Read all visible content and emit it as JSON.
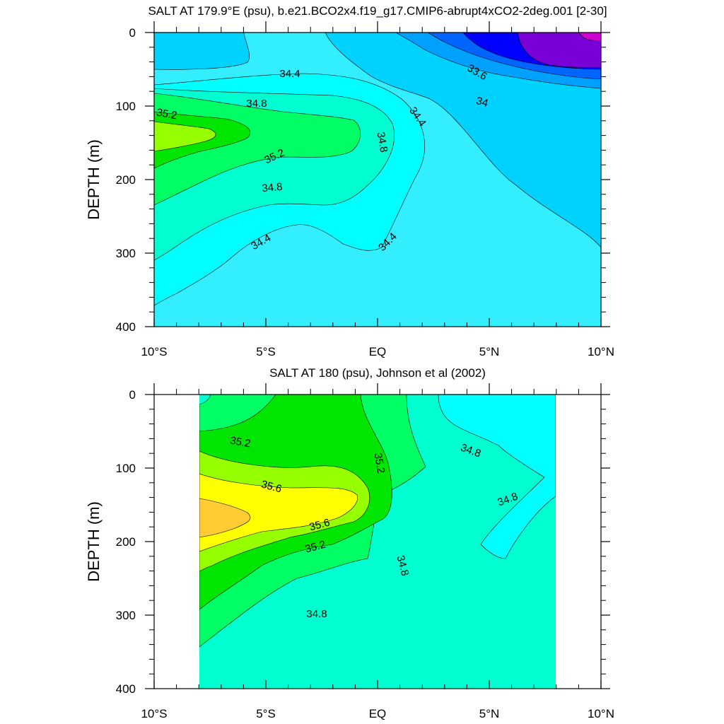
{
  "chart_data": [
    {
      "type": "contour",
      "title": "SALT AT 179.9°E (psu), b.e21.BCO2x4.f19_g17.CMIP6-abrupt4xCO2-2deg.001 [2-30]",
      "xlabel": "",
      "ylabel": "DEPTH (m)",
      "xlim": [
        -10,
        10
      ],
      "ylim": [
        400,
        0
      ],
      "y_reversed": true,
      "x_ticks": [
        -10,
        -5,
        0,
        5,
        10
      ],
      "x_tick_labels": [
        "10°S",
        "5°S",
        "EQ",
        "5°N",
        "10°N"
      ],
      "y_ticks": [
        0,
        100,
        200,
        300,
        400
      ],
      "y_tick_labels": [
        "0",
        "100",
        "200",
        "300",
        "400"
      ],
      "contour_interval": 0.2,
      "contour_labels": [
        {
          "text": "34.4",
          "lat": -4.2,
          "depth": 55
        },
        {
          "text": "34.8",
          "lat": -5.4,
          "depth": 95
        },
        {
          "text": "35.2",
          "lat": -9.6,
          "depth": 108
        },
        {
          "text": "35.2",
          "lat": -4.7,
          "depth": 165
        },
        {
          "text": "34.8",
          "lat": -0.2,
          "depth": 155
        },
        {
          "text": "34.8",
          "lat": -4.8,
          "depth": 210
        },
        {
          "text": "34.4",
          "lat": -5.3,
          "depth": 283
        },
        {
          "text": "34.4",
          "lat": 0.4,
          "depth": 283
        },
        {
          "text": "34.4",
          "lat": 1.8,
          "depth": 115
        },
        {
          "text": "33.6",
          "lat": 4.5,
          "depth": 55
        },
        {
          "text": "34",
          "lat": 4.6,
          "depth": 92
        }
      ],
      "fill_colors": {
        "low_33_0": "#7a00d8",
        "v33_2": "#0000ff",
        "v33_4": "#0064ff",
        "v33_6": "#00a0ff",
        "v34_0": "#00d2ff",
        "v34_4": "#33eeff",
        "v34_6": "#00ffff",
        "v34_8": "#00ffd0",
        "v35_0": "#00ff64",
        "v35_2": "#00e600",
        "v35_4": "#96ff00",
        "max": "#d000d0"
      }
    },
    {
      "type": "contour",
      "title": "SALT AT 180 (psu), Johnson et al (2002)",
      "xlabel": "",
      "ylabel": "DEPTH (m)",
      "xlim": [
        -10,
        10
      ],
      "ylim": [
        400,
        0
      ],
      "y_reversed": true,
      "data_x_range": [
        -8,
        8
      ],
      "x_ticks": [
        -10,
        -5,
        0,
        5,
        10
      ],
      "x_tick_labels": [
        "10°S",
        "5°S",
        "EQ",
        "5°N",
        "10°N"
      ],
      "y_ticks": [
        0,
        100,
        200,
        300,
        400
      ],
      "y_tick_labels": [
        "0",
        "100",
        "200",
        "300",
        "400"
      ],
      "contour_interval": 0.2,
      "contour_labels": [
        {
          "text": "35.2",
          "lat": -6.2,
          "depth": 68
        },
        {
          "text": "35.2",
          "lat": -0.1,
          "depth": 100
        },
        {
          "text": "34.8",
          "lat": 4.2,
          "depth": 78
        },
        {
          "text": "35.6",
          "lat": -4.8,
          "depth": 130
        },
        {
          "text": "34.8",
          "lat": 5.8,
          "depth": 147
        },
        {
          "text": "35.6",
          "lat": -2.7,
          "depth": 185
        },
        {
          "text": "35.2",
          "lat": -2.9,
          "depth": 207
        },
        {
          "text": "34.8",
          "lat": 1.1,
          "depth": 240
        },
        {
          "text": "34.8",
          "lat": -2.7,
          "depth": 298
        }
      ],
      "fill_colors": {
        "v34_4": "#33eeff",
        "v34_6": "#00ffff",
        "v34_8": "#00ffd0",
        "v35_0": "#00ff64",
        "v35_2": "#00e600",
        "v35_4": "#96ff00",
        "v35_6": "#ffff00",
        "v35_8": "#ffcc33"
      }
    }
  ]
}
